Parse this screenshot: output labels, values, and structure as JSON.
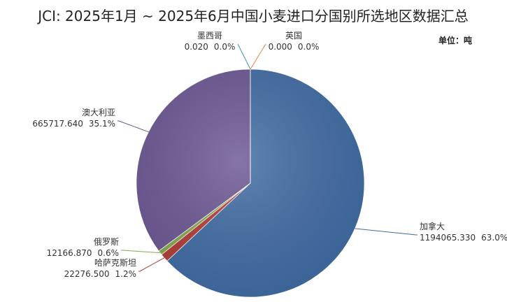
{
  "chart_data": {
    "type": "pie",
    "title": "JCI: 2025年1月 ~ 2025年6月中国小麦进口分国别所选地区数据汇总",
    "unit_label": "单位：吨",
    "categories": [
      "加拿大",
      "哈萨克斯坦",
      "俄罗斯",
      "澳大利亚",
      "墨西哥",
      "英国"
    ],
    "values": [
      1194065.33,
      22276.5,
      12166.87,
      665717.64,
      0.02,
      0
    ],
    "value_labels": [
      "1194065.330",
      "22276.500",
      "12166.870",
      "665717.640",
      "0.020",
      "0.000"
    ],
    "percent_labels": [
      "63.0%",
      "1.2%",
      "0.6%",
      "35.1%",
      "0.0%",
      "0.0%"
    ],
    "colors": [
      "#3f6ba3",
      "#b23b36",
      "#86a84e",
      "#6b5693",
      "#3d9aa8",
      "#e0864a"
    ]
  }
}
